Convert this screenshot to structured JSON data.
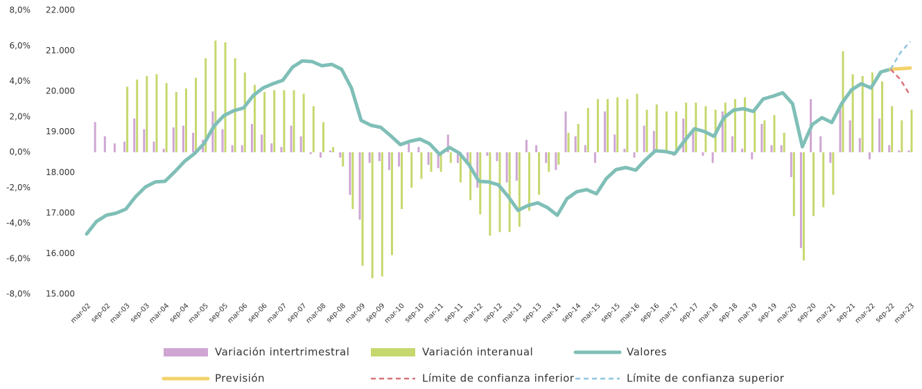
{
  "chart_data": {
    "type": "combo",
    "categories": [
      "mar-02",
      null,
      "sep-02",
      null,
      "mar-03",
      null,
      "sep-03",
      null,
      "mar-04",
      null,
      "sep-04",
      null,
      "mar-05",
      null,
      "sep-05",
      null,
      "mar-06",
      null,
      "sep-06",
      null,
      "mar-07",
      null,
      "sep-07",
      null,
      "mar-08",
      null,
      "sep-08",
      null,
      "mar-09",
      null,
      "sep-09",
      null,
      "mar-10",
      null,
      "sep-10",
      null,
      "mar-11",
      null,
      "sep-11",
      null,
      "mar-12",
      null,
      "sep-12",
      null,
      "mar-13",
      null,
      "sep-13",
      null,
      "mar-14",
      null,
      "sep-14",
      null,
      "mar-15",
      null,
      "sep-15",
      null,
      "mar-16",
      null,
      "sep-16",
      null,
      "mar-17",
      null,
      "sep-17",
      null,
      "mar-18",
      null,
      "sep-18",
      null,
      "mar-19",
      null,
      "sep-19",
      null,
      "mar-20",
      null,
      "sep-20",
      null,
      "mar-21",
      null,
      "sep-21",
      null,
      "mar-22",
      null,
      "sep-22",
      null,
      "mar-23"
    ],
    "ylim": [
      -8,
      8
    ],
    "yticks": [
      {
        "value": -8,
        "label": "-8,0%"
      },
      {
        "value": -6,
        "label": "-6,0%"
      },
      {
        "value": -4,
        "label": "-4,0%"
      },
      {
        "value": -2,
        "label": "-2,0%"
      },
      {
        "value": 0,
        "label": "0,0%"
      },
      {
        "value": 2,
        "label": "2,0%"
      },
      {
        "value": 4,
        "label": "4,0%"
      },
      {
        "value": 6,
        "label": "6,0%"
      },
      {
        "value": 8,
        "label": "8,0%"
      }
    ],
    "y2lim": [
      15000,
      22000
    ],
    "y2ticks": [
      {
        "value": 15000,
        "label": "15.000"
      },
      {
        "value": 16000,
        "label": "16.000"
      },
      {
        "value": 17000,
        "label": "17.000"
      },
      {
        "value": 18000,
        "label": "18.000"
      },
      {
        "value": 19000,
        "label": "19.000"
      },
      {
        "value": 20000,
        "label": "20.000"
      },
      {
        "value": 21000,
        "label": "21.000"
      },
      {
        "value": 22000,
        "label": "22.000"
      }
    ],
    "series": [
      {
        "name": "Variación intertrimestral",
        "type": "bar",
        "color": "#cfa6d3",
        "values": [
          null,
          1.7,
          0.9,
          0.5,
          0.6,
          1.9,
          1.3,
          0.6,
          0.2,
          1.4,
          1.5,
          1.1,
          0.7,
          2.3,
          1.3,
          0.4,
          0.4,
          1.6,
          1.0,
          0.5,
          0.3,
          1.5,
          0.9,
          -0.1,
          -0.3,
          0.1,
          -0.3,
          -2.4,
          -3.8,
          -0.6,
          -0.5,
          -1.0,
          -0.8,
          0.5,
          0.3,
          -0.7,
          -0.9,
          1.0,
          -0.6,
          -0.5,
          -2.0,
          -0.2,
          -0.5,
          -1.7,
          -1.6,
          0.7,
          0.4,
          -0.6,
          -1.0,
          2.3,
          0.9,
          0.4,
          -0.6,
          2.3,
          1.0,
          0.2,
          -0.3,
          1.5,
          1.2,
          0.0,
          -0.2,
          1.9,
          1.2,
          -0.2,
          -0.6,
          2.3,
          0.9,
          0.2,
          -0.4,
          1.6,
          0.4,
          0.4,
          -1.4,
          -5.4,
          3.0,
          0.9,
          -0.6,
          2.6,
          1.8,
          0.8,
          -0.4,
          1.9,
          0.4,
          0.1,
          0.1
        ]
      },
      {
        "name": "Variación interanual",
        "type": "bar",
        "color": "#c5d86d",
        "values": [
          null,
          null,
          null,
          null,
          3.7,
          4.1,
          4.3,
          4.4,
          3.9,
          3.4,
          3.6,
          4.2,
          5.3,
          6.3,
          6.2,
          5.3,
          4.5,
          3.8,
          3.4,
          3.5,
          3.5,
          3.5,
          3.3,
          2.6,
          1.7,
          0.3,
          -0.8,
          -3.2,
          -6.4,
          -7.1,
          -7.0,
          -5.8,
          -3.2,
          -2.0,
          -1.5,
          -1.1,
          -1.1,
          -0.6,
          -1.7,
          -2.7,
          -3.5,
          -4.7,
          -4.5,
          -4.5,
          -4.2,
          -3.3,
          -2.4,
          -1.1,
          -0.7,
          1.1,
          1.6,
          2.5,
          3.0,
          3.0,
          3.1,
          3.0,
          3.3,
          2.4,
          2.7,
          2.3,
          2.3,
          2.8,
          2.8,
          2.6,
          2.4,
          2.8,
          3.0,
          3.1,
          2.4,
          1.8,
          2.1,
          1.1,
          -3.6,
          -6.1,
          -3.6,
          -3.1,
          -2.4,
          5.7,
          4.4,
          4.3,
          4.5,
          4.0,
          2.6,
          1.8,
          2.4
        ]
      },
      {
        "name": "Valores",
        "type": "line",
        "axis": "y2",
        "color": "#7fbfb7",
        "values": [
          16486,
          16793,
          16947,
          16998,
          17100,
          17408,
          17647,
          17767,
          17784,
          18023,
          18279,
          18467,
          18723,
          19150,
          19405,
          19525,
          19593,
          19900,
          20088,
          20191,
          20276,
          20600,
          20754,
          20737,
          20634,
          20668,
          20549,
          20088,
          19286,
          19166,
          19115,
          18910,
          18688,
          18774,
          18825,
          18706,
          18449,
          18620,
          18483,
          18193,
          17784,
          17767,
          17698,
          17408,
          17067,
          17186,
          17254,
          17135,
          16947,
          17357,
          17528,
          17579,
          17477,
          17852,
          18074,
          18125,
          18057,
          18313,
          18535,
          18518,
          18467,
          18791,
          19081,
          19013,
          18893,
          19354,
          19542,
          19576,
          19508,
          19815,
          19883,
          19969,
          19696,
          18637,
          19183,
          19354,
          19234,
          19696,
          20037,
          20191,
          20088,
          20481,
          20549,
          null,
          null
        ]
      },
      {
        "name": "Previsión",
        "type": "line",
        "axis": "y2",
        "color": "#f2d36b",
        "values": [
          null,
          null,
          null,
          null,
          null,
          null,
          null,
          null,
          null,
          null,
          null,
          null,
          null,
          null,
          null,
          null,
          null,
          null,
          null,
          null,
          null,
          null,
          null,
          null,
          null,
          null,
          null,
          null,
          null,
          null,
          null,
          null,
          null,
          null,
          null,
          null,
          null,
          null,
          null,
          null,
          null,
          null,
          null,
          null,
          null,
          null,
          null,
          null,
          null,
          null,
          null,
          null,
          null,
          null,
          null,
          null,
          null,
          null,
          null,
          null,
          null,
          null,
          null,
          null,
          null,
          null,
          null,
          null,
          null,
          null,
          null,
          null,
          null,
          null,
          null,
          null,
          null,
          null,
          null,
          null,
          null,
          null,
          20549,
          20560,
          20580
        ]
      },
      {
        "name": "Límite de confianza inferior",
        "type": "line",
        "axis": "y2",
        "dash": true,
        "color": "#d8707a",
        "values": [
          null,
          null,
          null,
          null,
          null,
          null,
          null,
          null,
          null,
          null,
          null,
          null,
          null,
          null,
          null,
          null,
          null,
          null,
          null,
          null,
          null,
          null,
          null,
          null,
          null,
          null,
          null,
          null,
          null,
          null,
          null,
          null,
          null,
          null,
          null,
          null,
          null,
          null,
          null,
          null,
          null,
          null,
          null,
          null,
          null,
          null,
          null,
          null,
          null,
          null,
          null,
          null,
          null,
          null,
          null,
          null,
          null,
          null,
          null,
          null,
          null,
          null,
          null,
          null,
          null,
          null,
          null,
          null,
          null,
          null,
          null,
          null,
          null,
          null,
          null,
          null,
          null,
          null,
          null,
          null,
          null,
          null,
          20549,
          20293,
          19900
        ]
      },
      {
        "name": "Límite de confianza superior",
        "type": "line",
        "axis": "y2",
        "dash": true,
        "color": "#8ec5de",
        "values": [
          null,
          null,
          null,
          null,
          null,
          null,
          null,
          null,
          null,
          null,
          null,
          null,
          null,
          null,
          null,
          null,
          null,
          null,
          null,
          null,
          null,
          null,
          null,
          null,
          null,
          null,
          null,
          null,
          null,
          null,
          null,
          null,
          null,
          null,
          null,
          null,
          null,
          null,
          null,
          null,
          null,
          null,
          null,
          null,
          null,
          null,
          null,
          null,
          null,
          null,
          null,
          null,
          null,
          null,
          null,
          null,
          null,
          null,
          null,
          null,
          null,
          null,
          null,
          null,
          null,
          null,
          null,
          null,
          null,
          null,
          null,
          null,
          null,
          null,
          null,
          null,
          null,
          null,
          null,
          null,
          null,
          null,
          20549,
          20959,
          21232
        ]
      }
    ]
  }
}
